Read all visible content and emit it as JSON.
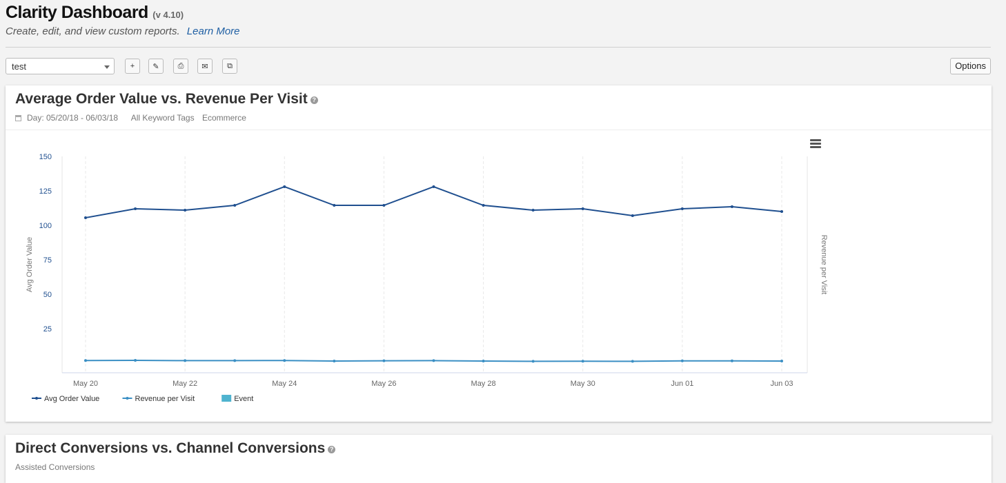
{
  "app": {
    "title": "Clarity Dashboard",
    "version": "(v 4.10)",
    "subtitle": "Create, edit, and view custom reports.",
    "learn_more": "Learn More"
  },
  "toolbar": {
    "dashboard_select": "test",
    "buttons": [
      {
        "name": "add-icon",
        "glyph": "+"
      },
      {
        "name": "edit-icon",
        "glyph": "✎"
      },
      {
        "name": "print-icon",
        "glyph": "⎙"
      },
      {
        "name": "email-icon",
        "glyph": "✉"
      },
      {
        "name": "copy-icon",
        "glyph": "⧉"
      }
    ],
    "options_label": "Options"
  },
  "panel1": {
    "title": "Average Order Value vs. Revenue Per Visit",
    "date_range": "Day: 05/20/18 - 06/03/18",
    "keyword": "All Keyword Tags",
    "segment": "Ecommerce"
  },
  "panel2": {
    "title": "Direct Conversions vs. Channel Conversions",
    "meta": "Assisted Conversions"
  },
  "chart_data": {
    "type": "line",
    "x": [
      "May 20",
      "May 21",
      "May 22",
      "May 23",
      "May 24",
      "May 25",
      "May 26",
      "May 27",
      "May 28",
      "May 29",
      "May 30",
      "May 31",
      "Jun 01",
      "Jun 02",
      "Jun 03"
    ],
    "x_tick_labels": [
      "May 20",
      "May 22",
      "May 24",
      "May 26",
      "May 28",
      "May 30",
      "Jun 01",
      "Jun 03"
    ],
    "ylabel": "Avg Order Value",
    "ylabel_right": "Revenue per Visit",
    "ylim": [
      0,
      150
    ],
    "y_ticks": [
      25,
      50,
      75,
      100,
      125,
      150
    ],
    "grid": "vertical dashed",
    "series": [
      {
        "name": "Avg Order Value",
        "color": "#1f4f8f",
        "values": [
          105.5,
          112,
          111,
          114.5,
          128,
          114.5,
          114.5,
          128,
          114.5,
          111,
          112,
          107,
          112,
          113.5,
          110
        ]
      },
      {
        "name": "Revenue per Visit",
        "color": "#3a8fc4",
        "values": [
          1.9,
          2.0,
          1.8,
          1.8,
          1.9,
          1.5,
          1.7,
          1.8,
          1.5,
          1.3,
          1.4,
          1.3,
          1.6,
          1.6,
          1.5
        ]
      }
    ],
    "legend": [
      {
        "name": "Avg Order Value",
        "color": "#1f4f8f",
        "kind": "line"
      },
      {
        "name": "Revenue per Visit",
        "color": "#3a8fc4",
        "kind": "line"
      },
      {
        "name": "Event",
        "color": "#4fb3cf",
        "kind": "box"
      }
    ],
    "legend_position": "bottom-left"
  }
}
